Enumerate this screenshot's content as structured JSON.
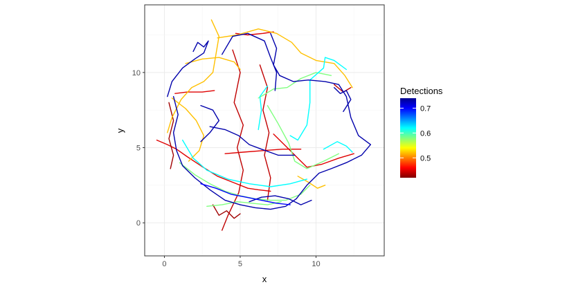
{
  "chart_data": {
    "type": "line",
    "title": "",
    "xlabel": "x",
    "ylabel": "y",
    "xlim": [
      -1.3,
      14.5
    ],
    "ylim": [
      -2.2,
      14.5
    ],
    "x_ticks": [
      0,
      5,
      10
    ],
    "y_ticks": [
      0,
      5,
      10
    ],
    "x_tick_labels": [
      "0",
      "5",
      "10"
    ],
    "y_tick_labels": [
      "0",
      "5",
      "10"
    ],
    "grid": true,
    "legend": {
      "title": "Detections",
      "placement": "right",
      "range": [
        0.42,
        0.74
      ],
      "breaks": [
        0.5,
        0.6,
        0.7
      ],
      "break_labels": [
        "0.5",
        "0.6",
        "0.7"
      ]
    },
    "colormap": [
      "#800000",
      "#ff0000",
      "#ff8000",
      "#ffff00",
      "#80ff80",
      "#00ffff",
      "#0080ff",
      "#0000ff",
      "#00008f"
    ],
    "series": [
      {
        "detections": 0.45,
        "points": [
          [
            -0.5,
            5.5
          ],
          [
            0.2,
            5.2
          ],
          [
            0.8,
            4.9
          ],
          [
            1.5,
            4.4
          ],
          [
            2.4,
            3.8
          ],
          [
            3.5,
            3.1
          ],
          [
            4.5,
            2.7
          ],
          [
            5.5,
            2.3
          ],
          [
            6.2,
            2.2
          ],
          [
            7.0,
            2.1
          ]
        ]
      },
      {
        "detections": 0.45,
        "points": [
          [
            7.2,
            5.9
          ],
          [
            8.0,
            5.1
          ],
          [
            8.8,
            4.3
          ],
          [
            9.4,
            3.7
          ],
          [
            10.4,
            3.9
          ],
          [
            11.5,
            4.3
          ],
          [
            12.5,
            4.6
          ]
        ]
      },
      {
        "detections": 0.45,
        "points": [
          [
            4.0,
            4.6
          ],
          [
            5.2,
            4.7
          ],
          [
            6.5,
            4.8
          ],
          [
            7.8,
            4.9
          ],
          [
            9.0,
            4.9
          ]
        ]
      },
      {
        "detections": 0.45,
        "points": [
          [
            0.7,
            8.6
          ],
          [
            1.5,
            8.7
          ],
          [
            2.5,
            8.7
          ],
          [
            3.3,
            8.8
          ]
        ]
      },
      {
        "detections": 0.45,
        "points": [
          [
            4.7,
            12.6
          ],
          [
            5.5,
            12.5
          ],
          [
            6.5,
            12.6
          ],
          [
            7.2,
            12.7
          ]
        ]
      },
      {
        "detections": 0.44,
        "points": [
          [
            4.5,
            11.5
          ],
          [
            5.0,
            10.0
          ],
          [
            4.6,
            8.0
          ],
          [
            5.2,
            6.5
          ],
          [
            4.8,
            5.0
          ],
          [
            5.2,
            3.5
          ],
          [
            4.9,
            2.0
          ],
          [
            4.2,
            0.5
          ],
          [
            3.8,
            -0.5
          ]
        ]
      },
      {
        "detections": 0.44,
        "points": [
          [
            6.3,
            10.5
          ],
          [
            6.8,
            9.0
          ],
          [
            6.5,
            7.5
          ],
          [
            6.9,
            6.0
          ],
          [
            6.6,
            4.5
          ],
          [
            7.0,
            3.0
          ],
          [
            6.8,
            1.5
          ]
        ]
      },
      {
        "detections": 0.44,
        "points": [
          [
            11.2,
            9.2
          ],
          [
            11.8,
            8.7
          ],
          [
            12.3,
            9.0
          ]
        ]
      },
      {
        "detections": 0.43,
        "points": [
          [
            0.3,
            8.0
          ],
          [
            0.6,
            6.8
          ],
          [
            0.3,
            5.6
          ],
          [
            0.6,
            4.5
          ],
          [
            0.4,
            3.6
          ]
        ]
      },
      {
        "detections": 0.43,
        "points": [
          [
            3.2,
            1.2
          ],
          [
            3.6,
            0.5
          ],
          [
            4.1,
            0.8
          ],
          [
            4.6,
            0.3
          ],
          [
            5.0,
            0.6
          ]
        ]
      },
      {
        "detections": 0.52,
        "points": [
          [
            3.1,
            13.5
          ],
          [
            3.6,
            12.4
          ],
          [
            3.4,
            11.2
          ],
          [
            3.2,
            10.0
          ],
          [
            2.6,
            9.4
          ],
          [
            1.8,
            9.0
          ],
          [
            1.1,
            8.2
          ],
          [
            0.5,
            7.0
          ],
          [
            0.2,
            6.0
          ]
        ]
      },
      {
        "detections": 0.52,
        "points": [
          [
            3.5,
            12.3
          ],
          [
            4.8,
            12.5
          ],
          [
            6.2,
            12.9
          ],
          [
            7.4,
            12.6
          ],
          [
            8.4,
            12.0
          ],
          [
            9.0,
            11.3
          ],
          [
            10.0,
            10.8
          ],
          [
            11.2,
            10.6
          ],
          [
            11.9,
            9.8
          ],
          [
            12.4,
            9.0
          ]
        ]
      },
      {
        "detections": 0.52,
        "points": [
          [
            1.4,
            10.6
          ],
          [
            2.5,
            10.9
          ],
          [
            3.6,
            11.0
          ],
          [
            4.6,
            10.7
          ],
          [
            5.0,
            10.2
          ]
        ]
      },
      {
        "detections": 0.52,
        "points": [
          [
            0.5,
            8.3
          ],
          [
            1.4,
            7.6
          ],
          [
            2.1,
            6.8
          ],
          [
            2.6,
            5.8
          ],
          [
            2.3,
            4.8
          ],
          [
            1.6,
            4.1
          ]
        ]
      },
      {
        "detections": 0.52,
        "points": [
          [
            8.8,
            3.1
          ],
          [
            9.5,
            2.7
          ],
          [
            10.1,
            2.3
          ],
          [
            10.6,
            2.5
          ]
        ]
      },
      {
        "detections": 0.58,
        "points": [
          [
            1.0,
            4.0
          ],
          [
            2.0,
            3.2
          ],
          [
            3.0,
            2.6
          ],
          [
            4.0,
            2.1
          ],
          [
            5.0,
            1.8
          ],
          [
            6.0,
            1.6
          ],
          [
            7.0,
            1.5
          ],
          [
            8.0,
            1.5
          ],
          [
            9.0,
            1.9
          ],
          [
            9.6,
            2.5
          ]
        ]
      },
      {
        "detections": 0.58,
        "points": [
          [
            6.8,
            7.8
          ],
          [
            7.5,
            6.6
          ],
          [
            8.2,
            5.3
          ],
          [
            8.6,
            4.1
          ],
          [
            9.4,
            3.6
          ],
          [
            10.5,
            4.1
          ],
          [
            11.5,
            4.6
          ]
        ]
      },
      {
        "detections": 0.58,
        "points": [
          [
            6.2,
            8.3
          ],
          [
            7.2,
            8.9
          ],
          [
            8.1,
            9.0
          ],
          [
            9.0,
            9.6
          ],
          [
            10.0,
            10.0
          ],
          [
            11.0,
            9.8
          ]
        ]
      },
      {
        "detections": 0.58,
        "points": [
          [
            2.8,
            1.1
          ],
          [
            3.8,
            1.2
          ],
          [
            4.8,
            1.4
          ],
          [
            5.8,
            1.3
          ],
          [
            6.8,
            1.2
          ],
          [
            7.7,
            1.4
          ]
        ]
      },
      {
        "detections": 0.62,
        "points": [
          [
            12.0,
            10.2
          ],
          [
            11.2,
            10.8
          ],
          [
            10.6,
            11.0
          ],
          [
            10.5,
            10.3
          ],
          [
            9.6,
            9.5
          ],
          [
            9.6,
            8.0
          ],
          [
            9.4,
            6.5
          ],
          [
            8.8,
            5.5
          ],
          [
            8.3,
            5.8
          ]
        ]
      },
      {
        "detections": 0.62,
        "points": [
          [
            1.2,
            5.5
          ],
          [
            1.9,
            4.3
          ],
          [
            2.8,
            3.5
          ],
          [
            4.2,
            2.9
          ],
          [
            5.6,
            2.6
          ],
          [
            7.0,
            2.4
          ],
          [
            8.3,
            2.6
          ],
          [
            9.4,
            2.9
          ]
        ]
      },
      {
        "detections": 0.62,
        "points": [
          [
            6.2,
            6.2
          ],
          [
            6.4,
            7.5
          ],
          [
            6.3,
            8.4
          ],
          [
            6.8,
            9.1
          ]
        ]
      },
      {
        "detections": 0.62,
        "points": [
          [
            10.5,
            4.9
          ],
          [
            11.4,
            5.4
          ],
          [
            12.0,
            5.1
          ],
          [
            12.4,
            4.7
          ]
        ]
      },
      {
        "detections": 0.73,
        "points": [
          [
            1.9,
            11.4
          ],
          [
            2.2,
            12.0
          ],
          [
            2.6,
            11.7
          ],
          [
            2.9,
            12.1
          ],
          [
            2.6,
            11.3
          ],
          [
            2.0,
            10.9
          ],
          [
            1.2,
            10.3
          ],
          [
            0.5,
            9.4
          ],
          [
            0.2,
            8.4
          ]
        ]
      },
      {
        "detections": 0.73,
        "points": [
          [
            3.8,
            11.2
          ],
          [
            4.5,
            12.4
          ],
          [
            5.5,
            12.6
          ],
          [
            6.6,
            12.1
          ],
          [
            7.0,
            11.0
          ],
          [
            7.4,
            10.0
          ],
          [
            7.3,
            8.8
          ]
        ]
      },
      {
        "detections": 0.73,
        "points": [
          [
            7.0,
            12.6
          ],
          [
            7.4,
            11.6
          ],
          [
            7.2,
            10.5
          ],
          [
            7.6,
            9.8
          ]
        ]
      },
      {
        "detections": 0.73,
        "points": [
          [
            7.6,
            9.8
          ],
          [
            8.5,
            9.4
          ],
          [
            9.5,
            9.5
          ],
          [
            10.6,
            9.4
          ],
          [
            11.5,
            9.2
          ],
          [
            12.0,
            8.4
          ],
          [
            12.3,
            7.0
          ],
          [
            12.8,
            5.8
          ],
          [
            13.6,
            5.2
          ],
          [
            13.0,
            4.5
          ],
          [
            12.0,
            4.0
          ],
          [
            11.0,
            3.6
          ],
          [
            10.2,
            3.3
          ],
          [
            9.4,
            2.5
          ],
          [
            8.7,
            1.6
          ],
          [
            8.0,
            1.1
          ],
          [
            7.0,
            0.9
          ],
          [
            6.0,
            1.0
          ],
          [
            5.0,
            1.2
          ],
          [
            4.0,
            1.5
          ],
          [
            3.0,
            2.2
          ],
          [
            2.0,
            3.0
          ],
          [
            1.2,
            3.8
          ],
          [
            0.8,
            4.8
          ],
          [
            0.6,
            6.0
          ],
          [
            0.9,
            7.2
          ],
          [
            0.6,
            8.4
          ]
        ]
      },
      {
        "detections": 0.73,
        "points": [
          [
            3.0,
            6.4
          ],
          [
            4.0,
            6.2
          ],
          [
            4.9,
            5.8
          ],
          [
            5.6,
            5.2
          ],
          [
            6.4,
            4.9
          ],
          [
            7.5,
            4.5
          ],
          [
            8.6,
            4.5
          ]
        ]
      },
      {
        "detections": 0.73,
        "points": [
          [
            2.4,
            7.8
          ],
          [
            3.2,
            7.5
          ],
          [
            3.6,
            6.8
          ],
          [
            3.0,
            6.0
          ],
          [
            2.4,
            5.4
          ]
        ]
      },
      {
        "detections": 0.73,
        "points": [
          [
            11.2,
            9.0
          ],
          [
            11.6,
            8.6
          ],
          [
            12.0,
            8.8
          ],
          [
            12.3,
            8.2
          ],
          [
            11.8,
            7.4
          ]
        ]
      },
      {
        "detections": 0.73,
        "points": [
          [
            5.6,
            1.4
          ],
          [
            6.4,
            1.7
          ],
          [
            7.3,
            1.8
          ],
          [
            8.2,
            1.6
          ],
          [
            9.0,
            1.2
          ],
          [
            9.7,
            1.5
          ]
        ]
      },
      {
        "detections": 0.7,
        "points": [
          [
            2.4,
            2.6
          ],
          [
            3.4,
            2.3
          ],
          [
            4.4,
            1.9
          ],
          [
            5.4,
            1.7
          ],
          [
            6.4,
            1.5
          ],
          [
            7.4,
            1.3
          ],
          [
            8.3,
            1.2
          ]
        ]
      }
    ]
  }
}
